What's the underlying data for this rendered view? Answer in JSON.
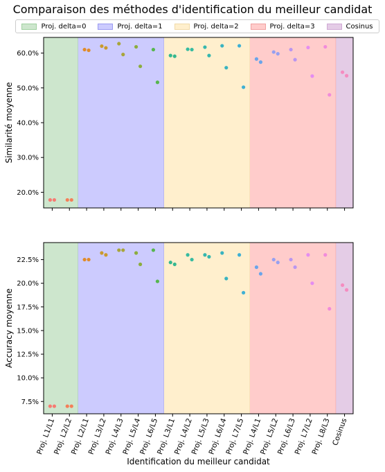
{
  "chart_data": {
    "title": "Comparaison des méthodes d'identification du meilleur candidat",
    "type": "scatter",
    "xlabel": "Identification du meilleur candidat",
    "categories": [
      "Proj. L1/L1",
      "Proj. L2/L2",
      "Proj. L2/L1",
      "Proj. L3/L2",
      "Proj. L4/L3",
      "Proj. L5/L4",
      "Proj. L6/L5",
      "Proj. L3/L1",
      "Proj. L4/L2",
      "Proj. L5/L3",
      "Proj. L6/L4",
      "Proj. L7/L5",
      "Proj. L4/L1",
      "Proj. L5/L2",
      "Proj. L6/L3",
      "Proj. L7/L2",
      "Proj. L8/L3",
      "Cosinus"
    ],
    "category_colors": [
      "#f77b72",
      "#f47f58",
      "#e08b2a",
      "#c99a2e",
      "#a8a53a",
      "#8bad3d",
      "#56b64e",
      "#35b88f",
      "#37bba0",
      "#36b7ae",
      "#39b3c0",
      "#3eb0d4",
      "#6aa4ea",
      "#96a0f0",
      "#b996f0",
      "#e48df1",
      "#f18bdb",
      "#f58cc0"
    ],
    "groups": [
      {
        "label": "Proj. delta=0",
        "start": 0,
        "end": 2,
        "fill": "#cde6cd",
        "swatch": "#cde6cd",
        "edge": "#9fd09f"
      },
      {
        "label": "Proj. delta=1",
        "start": 2,
        "end": 7,
        "fill": "#cccbfe",
        "swatch": "#cccbfe",
        "edge": "#9a9af0"
      },
      {
        "label": "Proj. delta=2",
        "start": 7,
        "end": 12,
        "fill": "#ffefcd",
        "swatch": "#ffefcd",
        "edge": "#f0d9a8"
      },
      {
        "label": "Proj. delta=3",
        "start": 12,
        "end": 17,
        "fill": "#ffcccb",
        "swatch": "#ffcccb",
        "edge": "#f0a0a0"
      },
      {
        "label": "Cosinus",
        "start": 17,
        "end": 18,
        "fill": "#e4cce6",
        "swatch": "#e4cce6",
        "edge": "#cfa8d4"
      }
    ],
    "panels": [
      {
        "ylabel": "Similarité moyenne",
        "ylim": [
          15.5,
          64.5
        ],
        "yticks": [
          20,
          30,
          40,
          50,
          60
        ],
        "ytick_labels": [
          "20.0%",
          "30.0%",
          "40.0%",
          "50.0%",
          "60.0%"
        ],
        "points": [
          [
            17.8,
            17.8
          ],
          [
            17.8,
            17.8
          ],
          [
            61.0,
            60.8
          ],
          [
            62.0,
            61.5
          ],
          [
            62.7,
            59.6
          ],
          [
            61.8,
            56.2
          ],
          [
            61.0,
            51.6
          ],
          [
            59.3,
            59.1
          ],
          [
            61.1,
            61.0
          ],
          [
            61.7,
            59.3
          ],
          [
            62.1,
            55.8
          ],
          [
            62.1,
            50.2
          ],
          [
            58.3,
            57.4
          ],
          [
            60.3,
            59.8
          ],
          [
            61.0,
            58.1
          ],
          [
            61.6,
            53.4
          ],
          [
            61.8,
            48.0
          ],
          [
            54.5,
            53.5
          ]
        ]
      },
      {
        "ylabel": "Accuracy moyenne",
        "ylim": [
          6.2,
          24.3
        ],
        "yticks": [
          7.5,
          10.0,
          12.5,
          15.0,
          17.5,
          20.0,
          22.5
        ],
        "ytick_labels": [
          "7.5%",
          "10.0%",
          "12.5%",
          "15.0%",
          "17.5%",
          "20.0%",
          "22.5%"
        ],
        "points": [
          [
            7.0,
            7.0
          ],
          [
            7.0,
            7.0
          ],
          [
            22.5,
            22.5
          ],
          [
            23.2,
            23.0
          ],
          [
            23.5,
            23.5
          ],
          [
            23.2,
            22.0
          ],
          [
            23.5,
            20.2
          ],
          [
            22.2,
            22.0
          ],
          [
            23.0,
            22.5
          ],
          [
            23.0,
            22.8
          ],
          [
            23.2,
            20.5
          ],
          [
            23.0,
            19.0
          ],
          [
            21.7,
            21.0
          ],
          [
            22.5,
            22.2
          ],
          [
            22.5,
            21.7
          ],
          [
            23.0,
            20.0
          ],
          [
            23.0,
            17.3
          ],
          [
            19.8,
            19.3
          ]
        ]
      }
    ]
  }
}
